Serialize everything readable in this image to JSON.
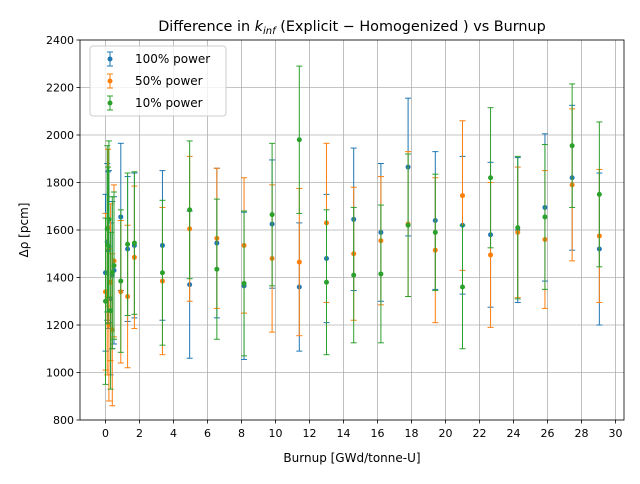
{
  "chart_data": {
    "type": "scatter",
    "title_prefix": "Difference in ",
    "title_k": "k",
    "title_sub": "inf",
    "title_suffix": " (Explicit − Homogenized ) vs Burnup",
    "xlabel": "Burnup [GWd/tonne-U]",
    "ylabel": "Δρ [pcm]",
    "xlim": [
      -1.5,
      30.5
    ],
    "ylim": [
      800,
      2400
    ],
    "xticks": [
      0,
      2,
      4,
      6,
      8,
      10,
      12,
      14,
      16,
      18,
      20,
      22,
      24,
      26,
      28,
      30
    ],
    "yticks": [
      800,
      1000,
      1200,
      1400,
      1600,
      1800,
      2000,
      2200,
      2400
    ],
    "grid": true,
    "error_bars": true,
    "legend_position": "top-left",
    "x": [
      0.0,
      0.1,
      0.15,
      0.2,
      0.3,
      0.4,
      0.5,
      0.9,
      1.3,
      1.7,
      3.35,
      4.95,
      6.55,
      8.15,
      9.8,
      11.4,
      13.0,
      14.6,
      16.2,
      17.8,
      19.4,
      21.0,
      22.65,
      24.25,
      25.85,
      27.45,
      29.05
    ],
    "series": [
      {
        "name": "100% power",
        "color": "#1f77b4",
        "values": [
          1420,
          1550,
          1515,
          1530,
          1310,
          1410,
          1430,
          1655,
          1520,
          1535,
          1535,
          1370,
          1545,
          1365,
          1625,
          1360,
          1480,
          1645,
          1590,
          1865,
          1640,
          1620,
          1580,
          1600,
          1695,
          1820,
          1520
        ],
        "errors": [
          330,
          330,
          330,
          320,
          320,
          310,
          310,
          310,
          305,
          305,
          315,
          310,
          315,
          310,
          270,
          270,
          270,
          300,
          290,
          290,
          290,
          290,
          305,
          305,
          310,
          305,
          320
        ]
      },
      {
        "name": "50% power",
        "color": "#ff7f0e",
        "values": [
          1340,
          1320,
          1610,
          1200,
          1380,
          1180,
          1470,
          1340,
          1320,
          1485,
          1385,
          1605,
          1565,
          1535,
          1480,
          1465,
          1630,
          1500,
          1555,
          1625,
          1515,
          1745,
          1495,
          1590,
          1560,
          1790,
          1575
        ],
        "errors": [
          330,
          330,
          330,
          320,
          330,
          320,
          320,
          300,
          300,
          300,
          310,
          305,
          295,
          285,
          310,
          310,
          335,
          280,
          270,
          305,
          305,
          315,
          305,
          275,
          290,
          320,
          280
        ]
      },
      {
        "name": "10% power",
        "color": "#2ca02c",
        "values": [
          1300,
          1605,
          1535,
          1645,
          1260,
          1420,
          1450,
          1385,
          1540,
          1545,
          1420,
          1685,
          1435,
          1375,
          1665,
          1980,
          1380,
          1410,
          1415,
          1620,
          1590,
          1360,
          1820,
          1610,
          1655,
          1955,
          1750
        ],
        "errors": [
          350,
          350,
          330,
          330,
          330,
          320,
          310,
          300,
          300,
          300,
          305,
          290,
          295,
          305,
          300,
          310,
          305,
          285,
          290,
          300,
          245,
          260,
          295,
          300,
          305,
          260,
          305
        ]
      }
    ]
  }
}
